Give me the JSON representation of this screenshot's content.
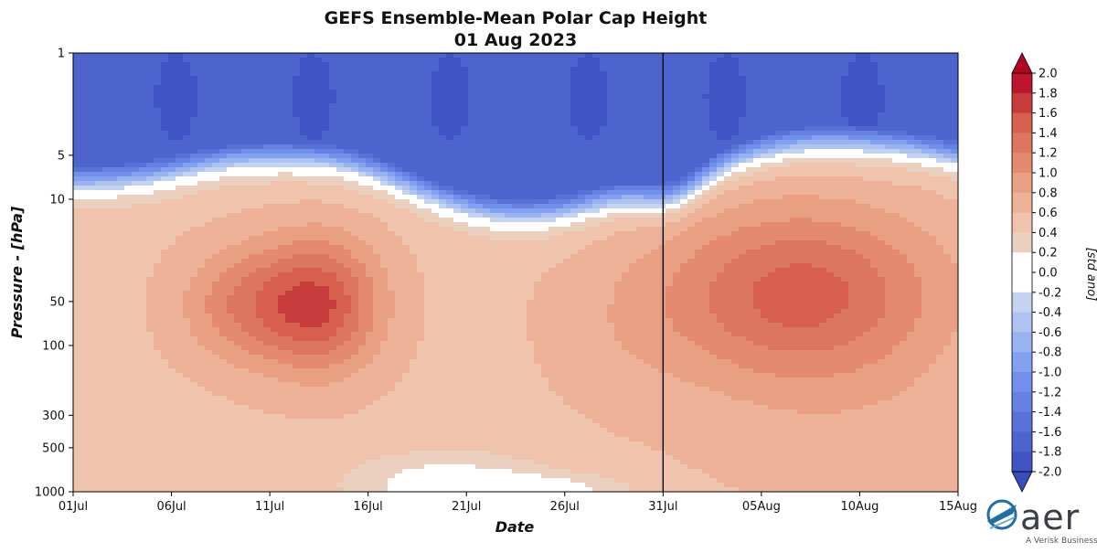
{
  "chart_data": {
    "type": "heatmap",
    "title": "GEFS Ensemble-Mean Polar Cap Height",
    "subtitle": "01 Aug 2023",
    "xlabel": "Date",
    "ylabel": "Pressure - [hPa]",
    "x_ticks": [
      "01Jul",
      "06Jul",
      "11Jul",
      "16Jul",
      "21Jul",
      "26Jul",
      "31Jul",
      "05Aug",
      "10Aug",
      "15Aug"
    ],
    "x_range_days": [
      0,
      45
    ],
    "forecast_start": "31Jul",
    "y_ticks": [
      1,
      5,
      10,
      50,
      100,
      300,
      500,
      1000
    ],
    "y_scale": "log",
    "y_range": [
      1000,
      1
    ],
    "colormap": "coolwarm",
    "colorbar": {
      "label": "[std ano]",
      "levels": [
        2.0,
        1.8,
        1.6,
        1.4,
        1.2,
        1.0,
        0.8,
        0.6,
        0.4,
        0.2,
        0.0,
        -0.2,
        -0.4,
        -0.6,
        -0.8,
        -1.0,
        -1.2,
        -1.4,
        -1.6,
        -1.8,
        -2.0
      ],
      "tick_labels": [
        "2.0",
        "1.8",
        "1.6",
        "1.4",
        "1.2",
        "1.0",
        "0.8",
        "0.6",
        "0.4",
        "0.2",
        "0.0",
        "-0.2",
        "-0.4",
        "-0.6",
        "-0.8",
        "-1.0",
        "-1.2",
        "-1.4",
        "-1.6",
        "-1.8",
        "-2.0"
      ],
      "extend": "both"
    },
    "features": [
      {
        "name": "tropospheric positive anomaly maximum",
        "day": 12.5,
        "pressure_hpa": 50,
        "value": 1.4
      },
      {
        "name": "forecast positive anomaly maximum",
        "day": 37,
        "pressure_hpa": 45,
        "value": 1.3
      },
      {
        "name": "stratospheric negative anomaly",
        "pressure_range_hpa": [
          1,
          5
        ],
        "value": -1.6
      }
    ]
  },
  "logo": {
    "word": "aer",
    "sub": "A Verisk Business",
    "icon": "aer-logo-icon",
    "color": "#1d6fa5"
  }
}
